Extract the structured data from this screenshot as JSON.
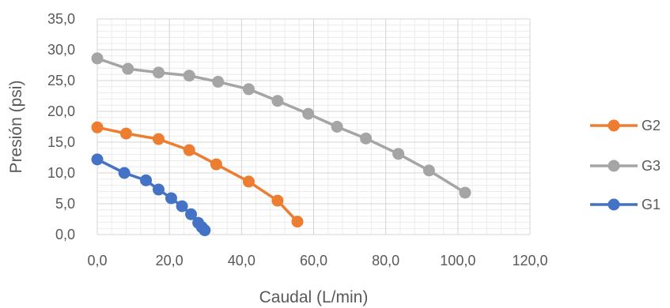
{
  "chart_data": {
    "type": "scatter",
    "xlabel": "Caudal (L/min)",
    "ylabel": "Presión (psi)",
    "xlim": [
      0,
      120
    ],
    "ylim": [
      0,
      35
    ],
    "x_ticks": [
      "0,0",
      "20,0",
      "40,0",
      "60,0",
      "80,0",
      "100,0",
      "120,0"
    ],
    "y_ticks": [
      "0,0",
      "5,0",
      "10,0",
      "15,0",
      "20,0",
      "25,0",
      "30,0",
      "35,0"
    ],
    "grid": "major and minor",
    "legend_position": "right",
    "legend_order": [
      "G2",
      "G3",
      "G1"
    ],
    "series": [
      {
        "name": "G1",
        "color": "#4472C4",
        "points": [
          [
            0.0,
            12.2
          ],
          [
            7.5,
            10.0
          ],
          [
            13.5,
            8.8
          ],
          [
            17.0,
            7.3
          ],
          [
            20.5,
            5.9
          ],
          [
            23.5,
            4.6
          ],
          [
            26.0,
            3.3
          ],
          [
            28.0,
            1.9
          ],
          [
            29.0,
            1.2
          ],
          [
            29.8,
            0.7
          ]
        ]
      },
      {
        "name": "G2",
        "color": "#ED7D31",
        "points": [
          [
            0.0,
            17.4
          ],
          [
            8.0,
            16.4
          ],
          [
            17.0,
            15.5
          ],
          [
            25.5,
            13.7
          ],
          [
            33.0,
            11.4
          ],
          [
            42.0,
            8.6
          ],
          [
            50.0,
            5.5
          ],
          [
            55.5,
            2.1
          ]
        ]
      },
      {
        "name": "G3",
        "color": "#A5A5A5",
        "points": [
          [
            0.0,
            28.6
          ],
          [
            8.5,
            26.9
          ],
          [
            17.0,
            26.3
          ],
          [
            25.5,
            25.8
          ],
          [
            33.5,
            24.8
          ],
          [
            42.0,
            23.6
          ],
          [
            50.0,
            21.7
          ],
          [
            58.5,
            19.6
          ],
          [
            66.5,
            17.5
          ],
          [
            74.5,
            15.6
          ],
          [
            83.5,
            13.1
          ],
          [
            92.0,
            10.4
          ],
          [
            102.0,
            6.8
          ]
        ]
      }
    ]
  }
}
